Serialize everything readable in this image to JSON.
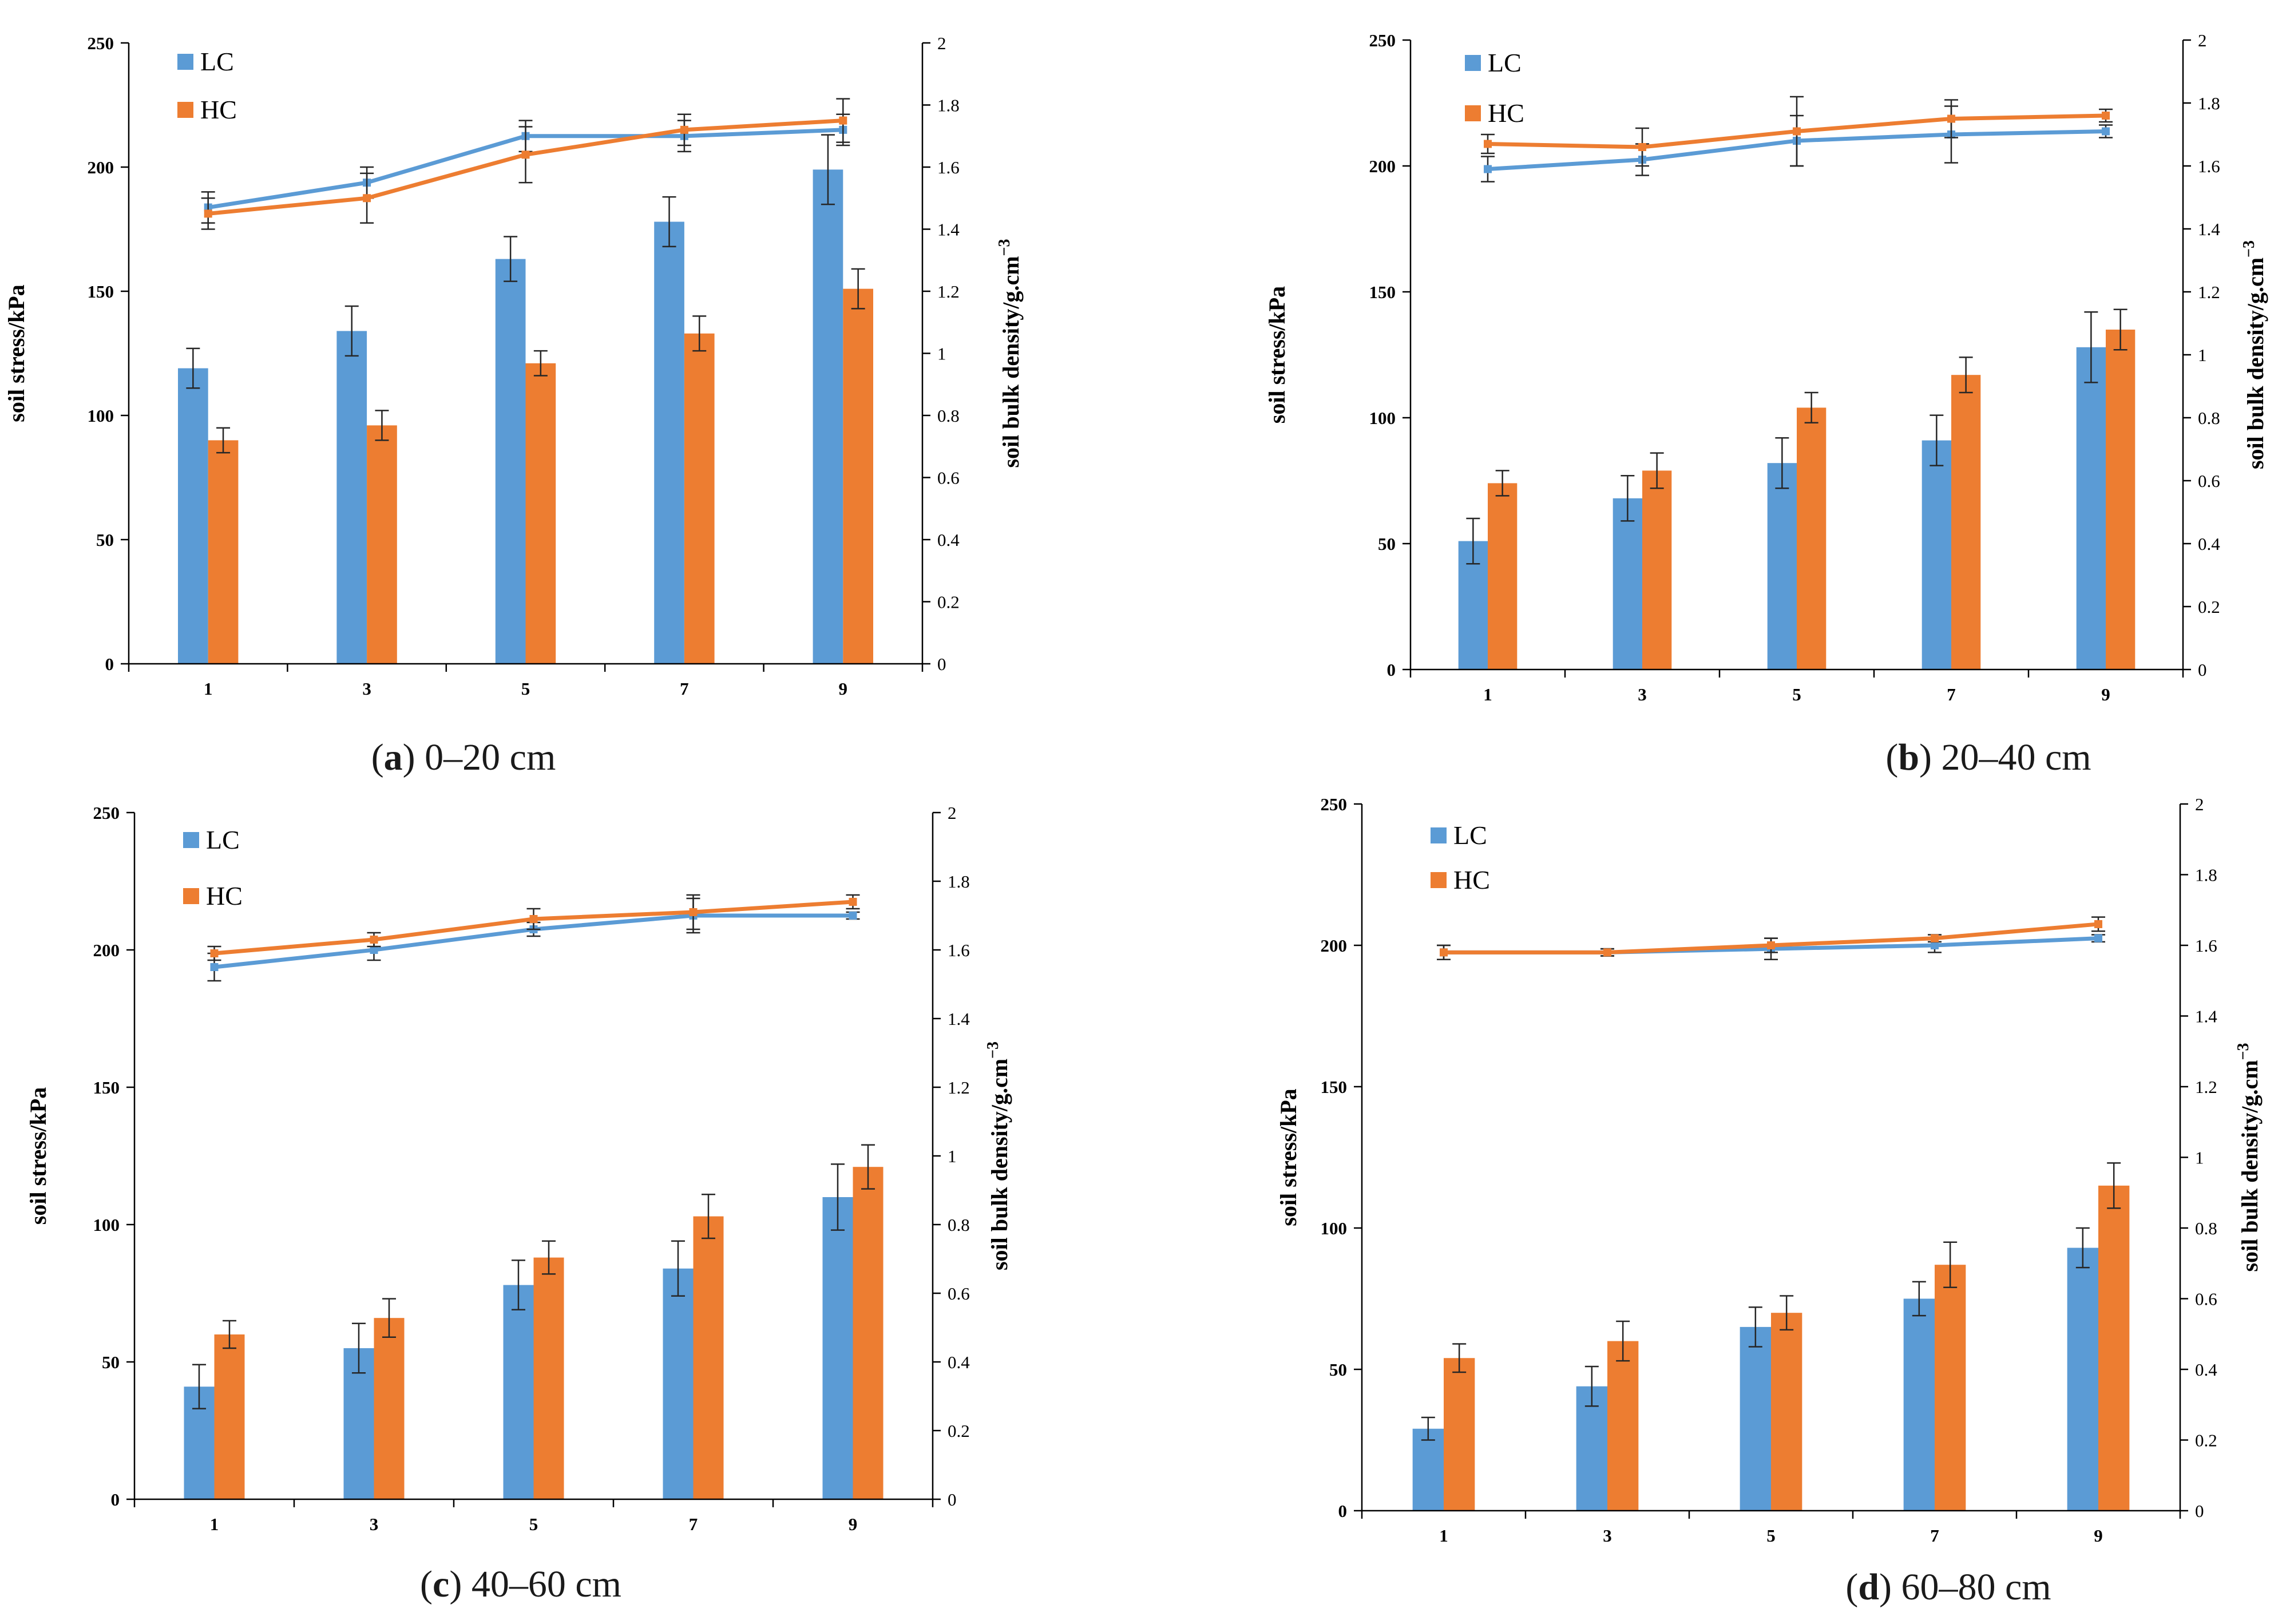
{
  "figure": {
    "caption_font_color": "#1a1a1a"
  },
  "colors": {
    "lc": "#5b9bd5",
    "hc": "#ed7d31",
    "axis": "#000000",
    "errorbar": "#262626"
  },
  "chart_data": [
    {
      "type": "bar+line",
      "panel_label": "a",
      "caption_text": " 0–20 cm",
      "ylabel_left": "soil stress/kPa",
      "ylabel_right": "soil  bulk density/g.cm",
      "ylabel_right_sup": "−3",
      "ylim_left": [
        0,
        250
      ],
      "yticks_left": [
        "0",
        "50",
        "100",
        "150",
        "200",
        "250"
      ],
      "ylim_right": [
        0,
        2
      ],
      "yticks_right": [
        "0",
        "0.2",
        "0.4",
        "0.6",
        "0.8",
        "1",
        "1.2",
        "1.4",
        "1.6",
        "1.8",
        "2"
      ],
      "categories": [
        "1",
        "3",
        "5",
        "7",
        "9"
      ],
      "legend": [
        "LC",
        "HC"
      ],
      "bars": [
        {
          "name": "LC",
          "values": [
            119,
            134,
            163,
            178,
            199
          ],
          "errors": [
            8,
            10,
            9,
            10,
            14
          ]
        },
        {
          "name": "HC",
          "values": [
            90,
            96,
            121,
            133,
            151
          ],
          "errors": [
            5,
            6,
            5,
            7,
            8
          ]
        }
      ],
      "lines": [
        {
          "name": "LC",
          "values": [
            1.47,
            1.55,
            1.7,
            1.7,
            1.72
          ],
          "errors": [
            0.05,
            0.05,
            0.05,
            0.05,
            0.05
          ]
        },
        {
          "name": "HC",
          "values": [
            1.45,
            1.5,
            1.64,
            1.72,
            1.75
          ],
          "errors": [
            0.05,
            0.08,
            0.09,
            0.05,
            0.07
          ]
        }
      ]
    },
    {
      "type": "bar+line",
      "panel_label": "b",
      "caption_text": " 20–40 cm",
      "ylabel_left": "soil stress/kPa",
      "ylabel_right": "soil  bulk density/g.cm",
      "ylabel_right_sup": "−3",
      "ylim_left": [
        0,
        250
      ],
      "yticks_left": [
        "0",
        "50",
        "100",
        "150",
        "200",
        "250"
      ],
      "ylim_right": [
        0,
        2
      ],
      "yticks_right": [
        "0",
        "0.2",
        "0.4",
        "0.6",
        "0.8",
        "1",
        "1.2",
        "1.4",
        "1.6",
        "1.8",
        "2"
      ],
      "categories": [
        "1",
        "3",
        "5",
        "7",
        "9"
      ],
      "legend": [
        "LC",
        "HC"
      ],
      "bars": [
        {
          "name": "LC",
          "values": [
            51,
            68,
            82,
            91,
            128
          ],
          "errors": [
            9,
            9,
            10,
            10,
            14
          ]
        },
        {
          "name": "HC",
          "values": [
            74,
            79,
            104,
            117,
            135
          ],
          "errors": [
            5,
            7,
            6,
            7,
            8
          ]
        }
      ],
      "lines": [
        {
          "name": "LC",
          "values": [
            1.59,
            1.62,
            1.68,
            1.7,
            1.71
          ],
          "errors": [
            0.04,
            0.05,
            0.08,
            0.09,
            0.02
          ]
        },
        {
          "name": "HC",
          "values": [
            1.67,
            1.66,
            1.71,
            1.75,
            1.76
          ],
          "errors": [
            0.03,
            0.06,
            0.11,
            0.06,
            0.02
          ]
        }
      ]
    },
    {
      "type": "bar+line",
      "panel_label": "c",
      "caption_text": " 40–60 cm",
      "ylabel_left": "soil stress/kPa",
      "ylabel_right": "soil  bulk density/g.cm",
      "ylabel_right_sup": "−3",
      "ylim_left": [
        0,
        250
      ],
      "yticks_left": [
        "0",
        "50",
        "100",
        "150",
        "200",
        "250"
      ],
      "ylim_right": [
        0,
        2
      ],
      "yticks_right": [
        "0",
        "0.2",
        "0.4",
        "0.6",
        "0.8",
        "1",
        "1.2",
        "1.4",
        "1.6",
        "1.8",
        "2"
      ],
      "categories": [
        "1",
        "3",
        "5",
        "7",
        "9"
      ],
      "legend": [
        "LC",
        "HC"
      ],
      "bars": [
        {
          "name": "LC",
          "values": [
            41,
            55,
            78,
            84,
            110
          ],
          "errors": [
            8,
            9,
            9,
            10,
            12
          ]
        },
        {
          "name": "HC",
          "values": [
            60,
            66,
            88,
            103,
            121
          ],
          "errors": [
            5,
            7,
            6,
            8,
            8
          ]
        }
      ],
      "lines": [
        {
          "name": "LC",
          "values": [
            1.55,
            1.6,
            1.66,
            1.7,
            1.7
          ],
          "errors": [
            0.04,
            0.03,
            0.02,
            0.05,
            0.01
          ]
        },
        {
          "name": "HC",
          "values": [
            1.59,
            1.63,
            1.69,
            1.71,
            1.74
          ],
          "errors": [
            0.02,
            0.02,
            0.03,
            0.05,
            0.02
          ]
        }
      ]
    },
    {
      "type": "bar+line",
      "panel_label": "d",
      "caption_text": " 60–80 cm",
      "ylabel_left": "soil stress/kPa",
      "ylabel_right": "soil  bulk density/g.cm",
      "ylabel_right_sup": "−3",
      "ylim_left": [
        0,
        250
      ],
      "yticks_left": [
        "0",
        "50",
        "100",
        "150",
        "200",
        "250"
      ],
      "ylim_right": [
        0,
        2
      ],
      "yticks_right": [
        "0",
        "0.2",
        "0.4",
        "0.6",
        "0.8",
        "1",
        "1.2",
        "1.4",
        "1.6",
        "1.8",
        "2"
      ],
      "categories": [
        "1",
        "3",
        "5",
        "7",
        "9"
      ],
      "legend": [
        "LC",
        "HC"
      ],
      "bars": [
        {
          "name": "LC",
          "values": [
            29,
            44,
            65,
            75,
            93
          ],
          "errors": [
            4,
            7,
            7,
            6,
            7
          ]
        },
        {
          "name": "HC",
          "values": [
            54,
            60,
            70,
            87,
            115
          ],
          "errors": [
            5,
            7,
            6,
            8,
            8
          ]
        }
      ],
      "lines": [
        {
          "name": "LC",
          "values": [
            1.58,
            1.58,
            1.59,
            1.6,
            1.62
          ],
          "errors": [
            0.02,
            0.01,
            0.03,
            0.02,
            0.01
          ]
        },
        {
          "name": "HC",
          "values": [
            1.58,
            1.58,
            1.6,
            1.62,
            1.66
          ],
          "errors": [
            0.02,
            0.01,
            0.02,
            0.01,
            0.02
          ]
        }
      ]
    }
  ]
}
